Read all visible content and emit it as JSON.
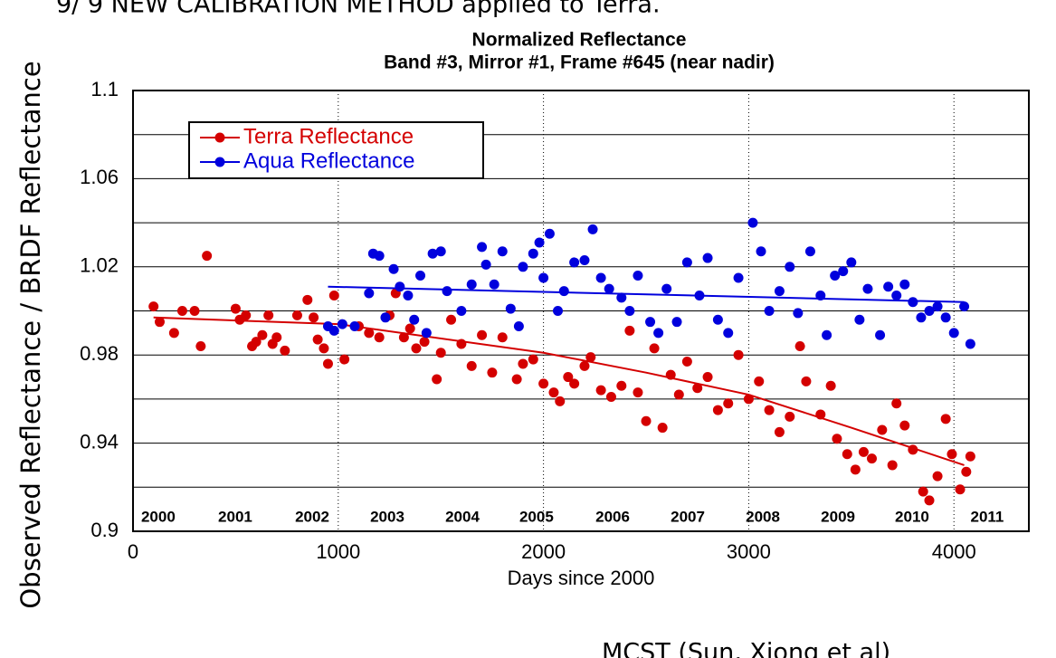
{
  "header": {
    "text": "9/ 9 NEW CALIBRATION METHOD applied to Terra."
  },
  "footer": {
    "text": "MCST (Sun, Xiong et al)"
  },
  "chart_data": {
    "type": "scatter",
    "title": "Normalized Reflectance",
    "subtitle": "Band #3, Mirror #1, Frame #645 (near nadir)",
    "xlabel": "Days since 2000",
    "ylabel": "Observed Reflectance / BRDF Reflectance",
    "xlim": [
      0,
      4365
    ],
    "ylim": [
      0.9,
      1.1
    ],
    "xticks": [
      0,
      1000,
      2000,
      3000,
      4000
    ],
    "yticks": [
      0.9,
      0.94,
      0.98,
      1.02,
      1.06,
      1.1
    ],
    "y_minor_ticks": [
      0.92,
      0.96,
      1.0,
      1.04,
      1.08
    ],
    "grid": true,
    "legend": "upper left",
    "annotations": [
      {
        "text": "2000",
        "x": 123
      },
      {
        "text": "2001",
        "x": 498
      },
      {
        "text": "2002",
        "x": 873
      },
      {
        "text": "2003",
        "x": 1239
      },
      {
        "text": "2004",
        "x": 1605
      },
      {
        "text": "2005",
        "x": 1966
      },
      {
        "text": "2006",
        "x": 2337
      },
      {
        "text": "2007",
        "x": 2703
      },
      {
        "text": "2008",
        "x": 3069
      },
      {
        "text": "2009",
        "x": 3435
      },
      {
        "text": "2010",
        "x": 3796
      },
      {
        "text": "2011",
        "x": 4162
      }
    ],
    "series": [
      {
        "name": "Terra Reflectance",
        "color": "#d40000",
        "x": [
          100,
          130,
          200,
          240,
          300,
          330,
          360,
          500,
          520,
          550,
          580,
          600,
          630,
          660,
          680,
          700,
          740,
          800,
          850,
          880,
          900,
          930,
          950,
          980,
          1030,
          1100,
          1150,
          1200,
          1250,
          1280,
          1320,
          1350,
          1380,
          1420,
          1480,
          1500,
          1550,
          1600,
          1650,
          1700,
          1750,
          1800,
          1870,
          1900,
          1950,
          2000,
          2050,
          2080,
          2120,
          2150,
          2200,
          2230,
          2280,
          2330,
          2380,
          2420,
          2460,
          2500,
          2540,
          2580,
          2620,
          2660,
          2700,
          2750,
          2800,
          2850,
          2900,
          2950,
          3000,
          3050,
          3100,
          3150,
          3200,
          3250,
          3280,
          3350,
          3400,
          3430,
          3480,
          3520,
          3560,
          3600,
          3650,
          3700,
          3720,
          3760,
          3800,
          3850,
          3880,
          3920,
          3960,
          3990,
          4030,
          4060,
          4080
        ],
        "values": [
          1.002,
          0.995,
          0.99,
          1.0,
          1.0,
          0.984,
          1.025,
          1.001,
          0.996,
          0.998,
          0.984,
          0.986,
          0.989,
          0.998,
          0.985,
          0.988,
          0.982,
          0.998,
          1.005,
          0.997,
          0.987,
          0.983,
          0.976,
          1.007,
          0.978,
          0.993,
          0.99,
          0.988,
          0.998,
          1.008,
          0.988,
          0.992,
          0.983,
          0.986,
          0.969,
          0.981,
          0.996,
          0.985,
          0.975,
          0.989,
          0.972,
          0.988,
          0.969,
          0.976,
          0.978,
          0.967,
          0.963,
          0.959,
          0.97,
          0.967,
          0.975,
          0.979,
          0.964,
          0.961,
          0.966,
          0.991,
          0.963,
          0.95,
          0.983,
          0.947,
          0.971,
          0.962,
          0.977,
          0.965,
          0.97,
          0.955,
          0.958,
          0.98,
          0.96,
          0.968,
          0.955,
          0.945,
          0.952,
          0.984,
          0.968,
          0.953,
          0.966,
          0.942,
          0.935,
          0.928,
          0.936,
          0.933,
          0.946,
          0.93,
          0.958,
          0.948,
          0.937,
          0.918,
          0.914,
          0.925,
          0.951,
          0.935,
          0.919,
          0.927,
          0.934
        ],
        "trend": {
          "x": [
            100,
            1000,
            2000,
            2500,
            3000,
            3500,
            4050
          ],
          "values": [
            0.997,
            0.994,
            0.981,
            0.972,
            0.962,
            0.947,
            0.93
          ]
        }
      },
      {
        "name": "Aqua Reflectance",
        "color": "#0000dd",
        "x": [
          950,
          980,
          1020,
          1080,
          1150,
          1170,
          1200,
          1230,
          1270,
          1300,
          1340,
          1370,
          1400,
          1430,
          1460,
          1500,
          1530,
          1600,
          1650,
          1700,
          1720,
          1760,
          1800,
          1840,
          1880,
          1900,
          1950,
          1980,
          2000,
          2030,
          2070,
          2100,
          2150,
          2200,
          2240,
          2280,
          2320,
          2380,
          2420,
          2460,
          2520,
          2560,
          2600,
          2650,
          2700,
          2760,
          2800,
          2850,
          2900,
          2950,
          3020,
          3060,
          3100,
          3150,
          3200,
          3240,
          3300,
          3350,
          3380,
          3420,
          3460,
          3500,
          3540,
          3580,
          3640,
          3680,
          3720,
          3760,
          3800,
          3840,
          3880,
          3920,
          3960,
          4000,
          4050,
          4080
        ],
        "values": [
          0.993,
          0.991,
          0.994,
          0.993,
          1.008,
          1.026,
          1.025,
          0.997,
          1.019,
          1.011,
          1.007,
          0.996,
          1.016,
          0.99,
          1.026,
          1.027,
          1.009,
          1.0,
          1.012,
          1.029,
          1.021,
          1.012,
          1.027,
          1.001,
          0.993,
          1.02,
          1.026,
          1.031,
          1.015,
          1.035,
          1.0,
          1.009,
          1.022,
          1.023,
          1.037,
          1.015,
          1.01,
          1.006,
          1.0,
          1.016,
          0.995,
          0.99,
          1.01,
          0.995,
          1.022,
          1.007,
          1.024,
          0.996,
          0.99,
          1.015,
          1.04,
          1.027,
          1.0,
          1.009,
          1.02,
          0.999,
          1.027,
          1.007,
          0.989,
          1.016,
          1.018,
          1.022,
          0.996,
          1.01,
          0.989,
          1.011,
          1.007,
          1.012,
          1.004,
          0.997,
          1.0,
          1.002,
          0.997,
          0.99,
          1.002,
          0.985
        ],
        "trend": {
          "x": [
            950,
            4050
          ],
          "values": [
            1.011,
            1.004
          ]
        }
      }
    ]
  }
}
